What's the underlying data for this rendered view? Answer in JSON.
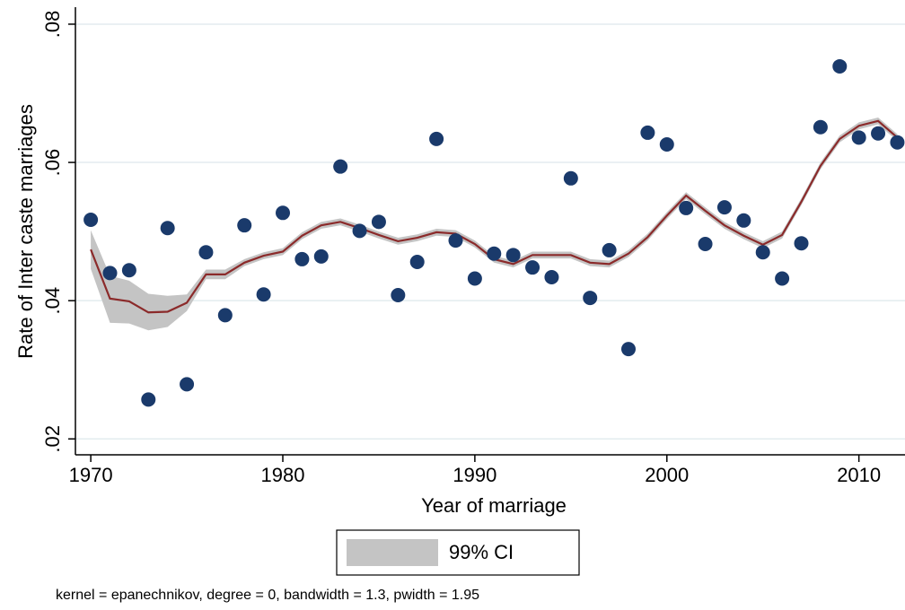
{
  "chart_data": {
    "type": "scatter",
    "x_label": "Year of marriage",
    "y_label": "Rate of Inter caste marriages",
    "note": "kernel = epanechnikov, degree = 0, bandwidth = 1.3, pwidth = 1.95",
    "xlim": [
      1969.2,
      2012.4
    ],
    "ylim": [
      0.0177,
      0.0822
    ],
    "xticks": [
      1970,
      1980,
      1990,
      2000,
      2010
    ],
    "yticks": [
      {
        "value": 0.02,
        "label": ".02"
      },
      {
        "value": 0.04,
        "label": ".04"
      },
      {
        "value": 0.06,
        "label": ".06"
      },
      {
        "value": 0.08,
        "label": ".08"
      }
    ],
    "grid": true,
    "x": [
      1970,
      1971,
      1972,
      1973,
      1974,
      1975,
      1976,
      1977,
      1978,
      1979,
      1980,
      1981,
      1982,
      1983,
      1984,
      1985,
      1986,
      1987,
      1988,
      1989,
      1990,
      1991,
      1992,
      1993,
      1994,
      1995,
      1996,
      1997,
      1998,
      1999,
      2000,
      2001,
      2002,
      2003,
      2004,
      2005,
      2006,
      2007,
      2008,
      2009,
      2010,
      2011,
      2012
    ],
    "points": {
      "color": "#1a3a6b",
      "values": [
        0.0517,
        0.044,
        0.0444,
        0.0257,
        0.0505,
        0.0279,
        0.047,
        0.0379,
        0.0509,
        0.0409,
        0.0527,
        0.046,
        0.0464,
        0.0594,
        0.0501,
        0.0514,
        0.0408,
        0.0456,
        0.0634,
        0.0487,
        0.0432,
        0.0468,
        0.0466,
        0.0448,
        0.0434,
        0.0577,
        0.0404,
        0.0473,
        0.033,
        0.0643,
        0.0626,
        0.0534,
        0.0482,
        0.0535,
        0.0516,
        0.047,
        0.0432,
        0.0483,
        0.0651,
        0.0739,
        0.0636,
        0.0642,
        0.0629
      ]
    },
    "line": {
      "color": "#8b2a2a",
      "values": [
        0.0474,
        0.0403,
        0.0399,
        0.0383,
        0.0384,
        0.0397,
        0.0438,
        0.0438,
        0.0455,
        0.0465,
        0.0471,
        0.0494,
        0.0509,
        0.0514,
        0.0505,
        0.0495,
        0.0486,
        0.0491,
        0.0499,
        0.0497,
        0.0482,
        0.046,
        0.0453,
        0.0466,
        0.0466,
        0.0466,
        0.0455,
        0.0453,
        0.0468,
        0.0492,
        0.0523,
        0.0552,
        0.053,
        0.0509,
        0.0494,
        0.0481,
        0.0495,
        0.0543,
        0.0595,
        0.0634,
        0.0653,
        0.066,
        0.0636
      ]
    },
    "band": {
      "name": "99% CI",
      "color": "#c4c4c4",
      "lower": [
        0.0446,
        0.0368,
        0.0367,
        0.0357,
        0.0362,
        0.0385,
        0.0431,
        0.0431,
        0.045,
        0.046,
        0.0466,
        0.0489,
        0.0504,
        0.0509,
        0.05,
        0.049,
        0.0481,
        0.0486,
        0.0494,
        0.0492,
        0.0477,
        0.0455,
        0.0448,
        0.0461,
        0.0461,
        0.0461,
        0.045,
        0.0448,
        0.0463,
        0.0487,
        0.0518,
        0.0547,
        0.0525,
        0.0504,
        0.0489,
        0.0476,
        0.049,
        0.0538,
        0.059,
        0.0629,
        0.0648,
        0.0655,
        0.0631
      ],
      "upper": [
        0.0502,
        0.0436,
        0.0429,
        0.041,
        0.0407,
        0.0409,
        0.0445,
        0.0445,
        0.046,
        0.047,
        0.0476,
        0.0499,
        0.0514,
        0.0519,
        0.051,
        0.05,
        0.0491,
        0.0496,
        0.0504,
        0.0502,
        0.0487,
        0.0465,
        0.0458,
        0.0471,
        0.0471,
        0.0471,
        0.046,
        0.0458,
        0.0473,
        0.0497,
        0.0528,
        0.0557,
        0.0535,
        0.0514,
        0.0499,
        0.0486,
        0.05,
        0.0548,
        0.06,
        0.0639,
        0.0658,
        0.0665,
        0.0641
      ]
    }
  }
}
